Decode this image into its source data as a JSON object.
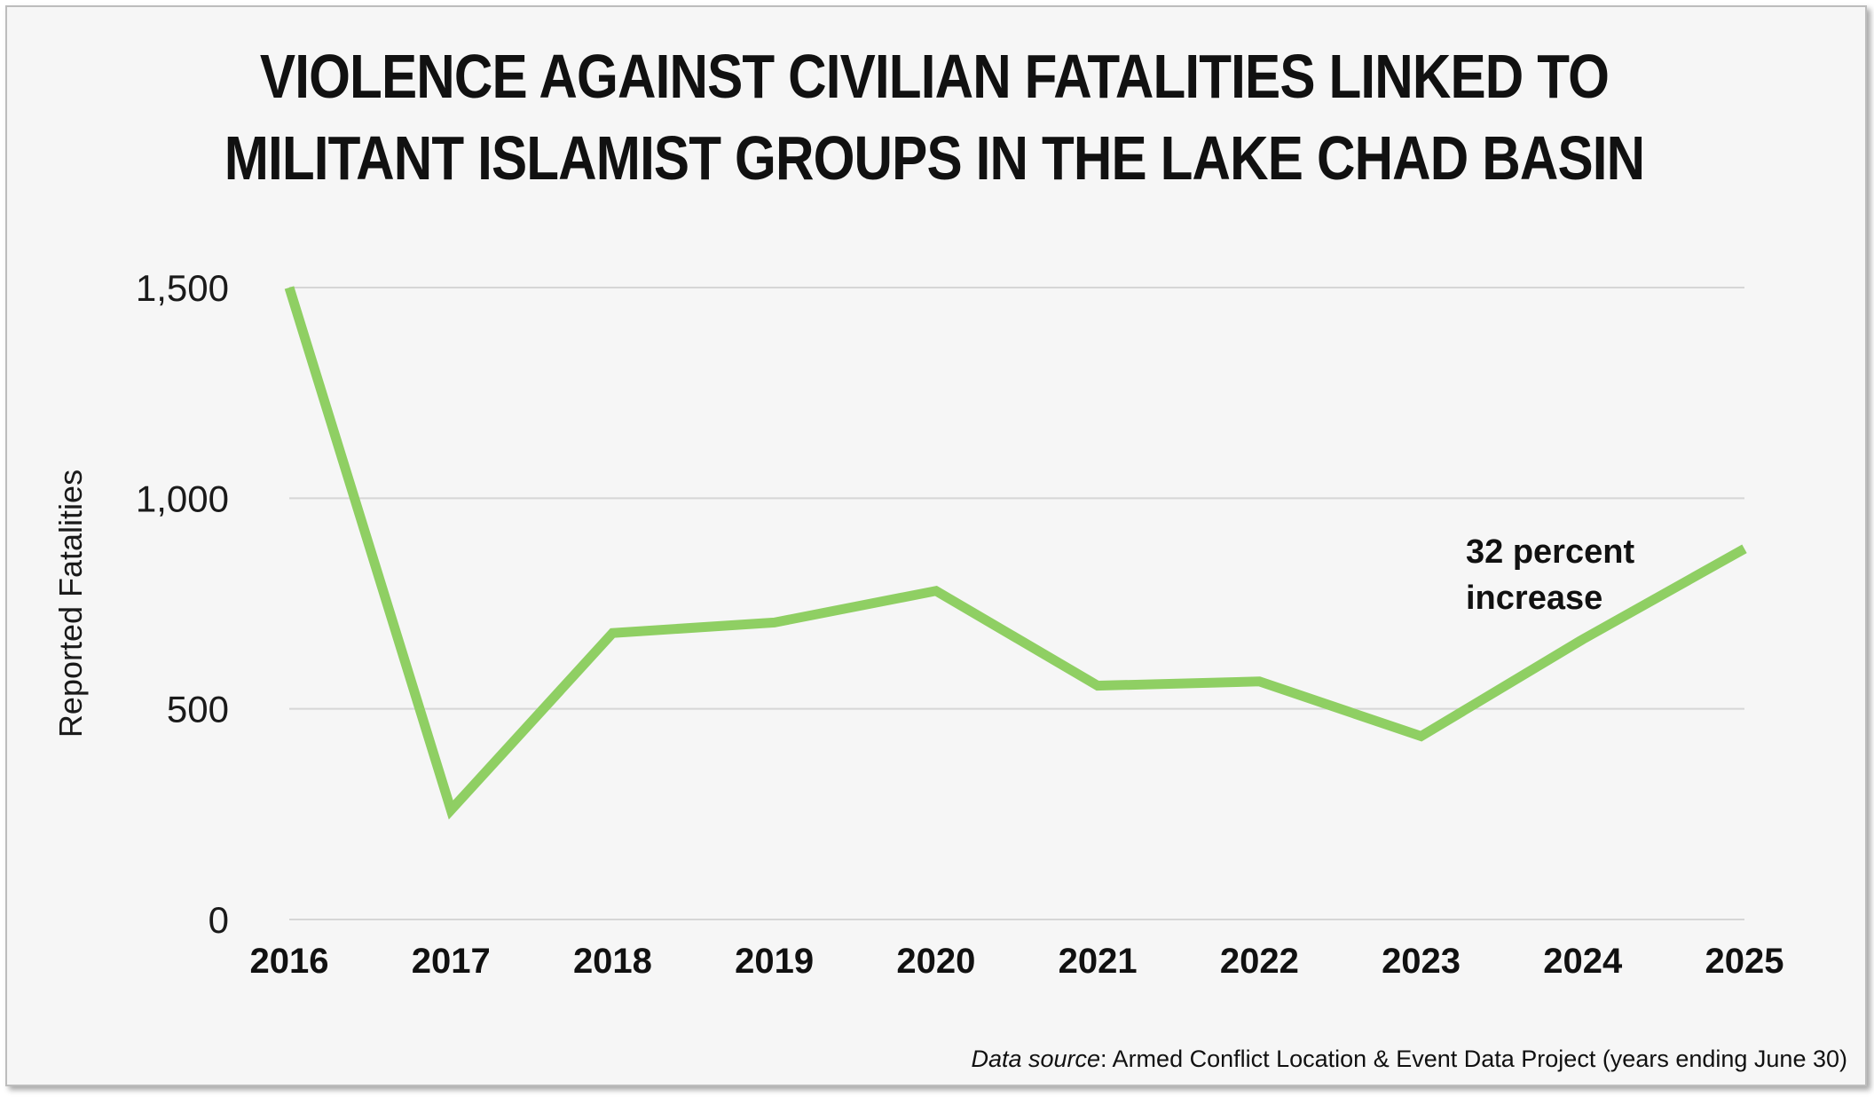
{
  "title_lines": [
    "VIOLENCE AGAINST CIVILIAN FATALITIES LINKED TO",
    "MILITANT ISLAMIST GROUPS IN THE LAKE CHAD BASIN"
  ],
  "source": {
    "label": "Data source",
    "text": ": Armed Conflict Location & Event Data Project (years ending June 30)"
  },
  "chart_data": {
    "type": "line",
    "title": "VIOLENCE AGAINST CIVILIAN FATALITIES LINKED TO MILITANT ISLAMIST GROUPS IN THE LAKE CHAD BASIN",
    "xlabel": "",
    "ylabel": "Reported Fatalities",
    "categories": [
      "2016",
      "2017",
      "2018",
      "2019",
      "2020",
      "2021",
      "2022",
      "2023",
      "2024",
      "2025"
    ],
    "series": [
      {
        "values": [
          1500,
          260,
          680,
          705,
          780,
          555,
          565,
          435,
          665,
          880
        ]
      }
    ],
    "ylim": [
      0,
      1500
    ],
    "yticks": [
      0,
      500,
      1000,
      1500
    ],
    "ytick_labels": [
      "0",
      "500",
      "1,000",
      "1,500"
    ],
    "grid": true,
    "line_color": "#8fcf63",
    "annotation": {
      "lines": [
        "32 percent",
        "increase"
      ]
    }
  }
}
